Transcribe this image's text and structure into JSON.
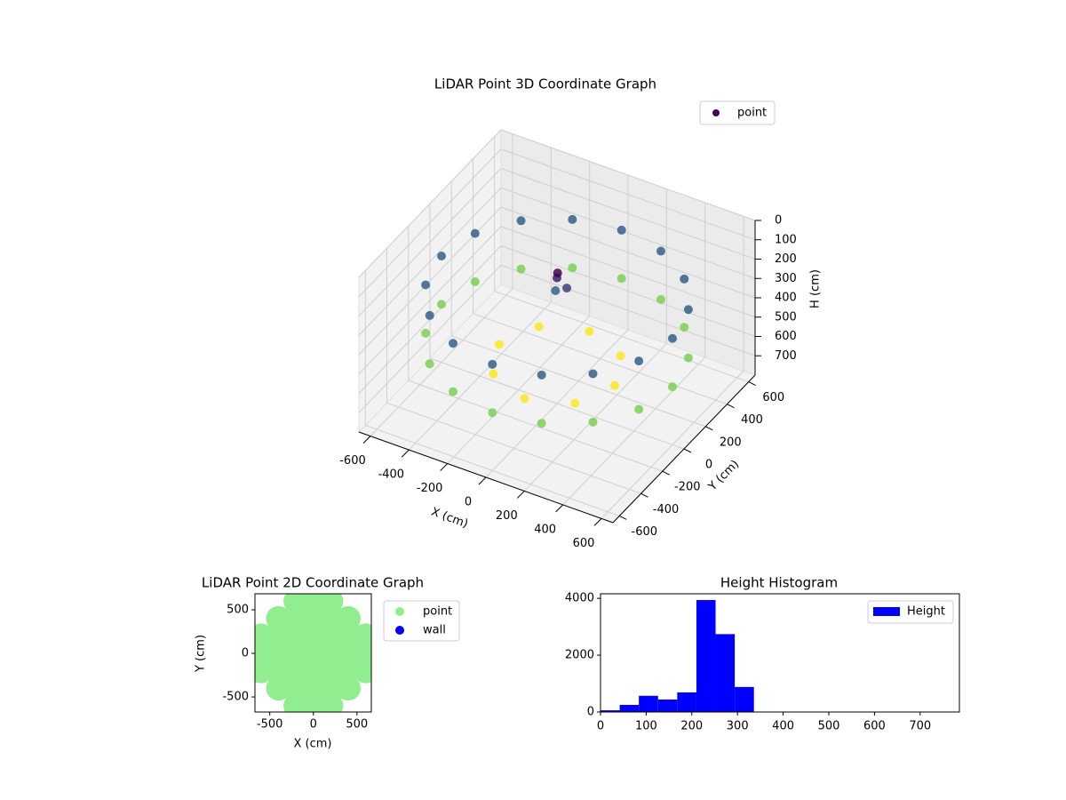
{
  "chart_data": [
    {
      "type": "scatter3d",
      "title": "LiDAR Point 3D Coordinate Graph",
      "xlabel": "X (cm)",
      "ylabel": "Y (cm)",
      "zlabel": "H (cm)",
      "xlim": [
        -660,
        660
      ],
      "ylim": [
        -660,
        660
      ],
      "zlim": [
        800,
        0
      ],
      "xticks": [
        -600,
        -400,
        -200,
        0,
        200,
        400,
        600
      ],
      "yticks": [
        -600,
        -400,
        -200,
        0,
        200,
        400,
        600
      ],
      "zticks": [
        0,
        100,
        200,
        300,
        400,
        500,
        600,
        700
      ],
      "colormap": "viridis",
      "grid": true,
      "legend": "upper right",
      "series": [
        {
          "name": "point",
          "color": "#440154",
          "x": [
            600,
            554,
            424,
            230,
            0,
            -230,
            -424,
            -554,
            -600,
            -554,
            -424,
            -230,
            0,
            230,
            424,
            554,
            600,
            554,
            424,
            230,
            0,
            -230,
            -424,
            -554,
            -600,
            -554,
            -424,
            -230,
            0,
            230,
            424,
            554,
            300,
            212,
            0,
            -212,
            -300,
            -212,
            0,
            212,
            0,
            40,
            -30,
            20
          ],
          "y": [
            0,
            230,
            424,
            554,
            600,
            554,
            424,
            230,
            0,
            -230,
            -424,
            -554,
            -600,
            -554,
            -424,
            -230,
            0,
            230,
            424,
            554,
            600,
            554,
            424,
            230,
            0,
            -230,
            -424,
            -554,
            -600,
            -554,
            -424,
            -230,
            0,
            212,
            300,
            212,
            0,
            -212,
            -300,
            -212,
            0,
            20,
            40,
            -30
          ],
          "z": [
            250,
            250,
            250,
            250,
            250,
            250,
            250,
            250,
            250,
            250,
            250,
            250,
            250,
            250,
            250,
            250,
            500,
            500,
            500,
            500,
            500,
            500,
            500,
            500,
            500,
            500,
            500,
            500,
            500,
            500,
            500,
            500,
            600,
            600,
            600,
            600,
            600,
            600,
            600,
            600,
            150,
            200,
            250,
            100
          ]
        }
      ]
    },
    {
      "type": "scatter",
      "title": "LiDAR Point 2D Coordinate Graph",
      "xlabel": "X (cm)",
      "ylabel": "Y (cm)",
      "xlim": [
        -670,
        665
      ],
      "ylim": [
        -673,
        684
      ],
      "xticks": [
        -500,
        0,
        500
      ],
      "yticks": [
        -500,
        0,
        500
      ],
      "legend": "outside right",
      "series": [
        {
          "name": "point",
          "color": "#90ee90",
          "x": [
            -200,
            0,
            200,
            -400,
            -200,
            0,
            200,
            400,
            -600,
            -400,
            -200,
            0,
            200,
            400,
            600,
            -600,
            -400,
            -200,
            0,
            200,
            400,
            600,
            -600,
            -400,
            -200,
            0,
            200,
            400,
            600,
            -400,
            -200,
            0,
            200,
            400,
            -200,
            0,
            200
          ],
          "y": [
            600,
            600,
            600,
            400,
            400,
            400,
            400,
            400,
            200,
            200,
            200,
            200,
            200,
            200,
            200,
            0,
            0,
            0,
            0,
            0,
            0,
            0,
            -200,
            -200,
            -200,
            -200,
            -200,
            -200,
            -200,
            -400,
            -400,
            -400,
            -400,
            -400,
            -600,
            -600,
            -600
          ]
        },
        {
          "name": "wall",
          "color": "#0000ff",
          "x": [],
          "y": []
        }
      ]
    },
    {
      "type": "histogram",
      "title": "Height Histogram",
      "xlim": [
        0,
        786
      ],
      "ylim": [
        0,
        4160
      ],
      "xticks": [
        0,
        100,
        200,
        300,
        400,
        500,
        600,
        700
      ],
      "yticks": [
        0,
        2000,
        4000
      ],
      "legend": "upper right",
      "bins": [
        0,
        42,
        84,
        126,
        168,
        210,
        252,
        294,
        336,
        378,
        420,
        462,
        504,
        546,
        588,
        630,
        672,
        714,
        756
      ],
      "series": [
        {
          "name": "Height",
          "color": "#0000ff",
          "values": [
            60,
            250,
            570,
            440,
            690,
            3940,
            2740,
            880,
            0,
            0,
            0,
            0,
            0,
            0,
            0,
            0,
            0,
            0
          ]
        }
      ]
    }
  ]
}
